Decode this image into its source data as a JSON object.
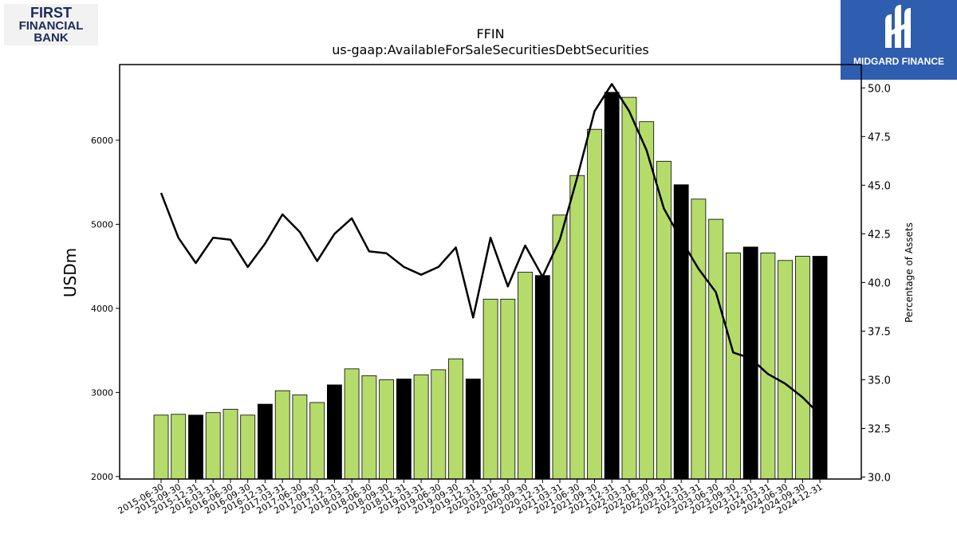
{
  "logos": {
    "left": {
      "line1": "FIRST",
      "line2": "FINANCIAL",
      "line3": "BANK"
    },
    "right": {
      "name": "MIDGARD FINANCE"
    }
  },
  "chart_data": {
    "type": "bar",
    "title": "FFIN",
    "subtitle": "us-gaap:AvailableForSaleSecuritiesDebtSecurities",
    "ylabel": "USDm",
    "y2label": "Percentage of Assets",
    "ylim": [
      1970,
      6900
    ],
    "y2lim": [
      29.9,
      51.2
    ],
    "yticks": [
      2000,
      3000,
      4000,
      5000,
      6000
    ],
    "y2ticks": [
      30.0,
      32.5,
      35.0,
      37.5,
      40.0,
      42.5,
      45.0,
      47.5,
      50.0
    ],
    "categories": [
      "2015-06-30",
      "2015-09-30",
      "2015-12-31",
      "2016-03-31",
      "2016-06-30",
      "2016-09-30",
      "2016-12-31",
      "2017-03-31",
      "2017-06-30",
      "2017-09-30",
      "2017-12-31",
      "2018-03-31",
      "2018-06-30",
      "2018-09-30",
      "2018-12-31",
      "2019-03-31",
      "2019-06-30",
      "2019-09-30",
      "2019-12-31",
      "2020-03-31",
      "2020-06-30",
      "2020-09-30",
      "2020-12-31",
      "2021-03-31",
      "2021-06-30",
      "2021-09-30",
      "2021-12-31",
      "2022-03-31",
      "2022-06-30",
      "2022-09-30",
      "2022-12-31",
      "2023-03-31",
      "2023-06-30",
      "2023-09-30",
      "2023-12-31",
      "2024-03-31",
      "2024-06-30",
      "2024-09-30",
      "2024-12-31"
    ],
    "series": [
      {
        "type": "bar",
        "values": [
          2730,
          2740,
          2730,
          2760,
          2800,
          2730,
          2860,
          3020,
          2970,
          2880,
          3090,
          3280,
          3200,
          3150,
          3160,
          3210,
          3270,
          3400,
          3160,
          4110,
          4110,
          4430,
          4390,
          5110,
          5580,
          6130,
          6570,
          6510,
          6220,
          5750,
          5470,
          5300,
          5060,
          4660,
          4730,
          4660,
          4570,
          4620,
          4620
        ],
        "highlight": [
          2,
          6,
          10,
          14,
          18,
          22,
          26,
          30,
          34,
          38
        ],
        "colors": {
          "normal": "#b5dc6b",
          "highlight": "#000000",
          "edge": "#000000"
        }
      },
      {
        "type": "line",
        "axis": "right",
        "values": [
          44.6,
          42.3,
          41.0,
          42.3,
          42.2,
          40.8,
          42.0,
          43.5,
          42.6,
          41.1,
          42.5,
          43.3,
          41.6,
          41.5,
          40.8,
          40.4,
          40.8,
          41.8,
          38.2,
          42.3,
          39.8,
          41.9,
          40.3,
          42.2,
          45.4,
          48.8,
          50.2,
          48.8,
          46.8,
          43.8,
          42.2,
          40.7,
          39.5,
          36.4,
          36.1,
          35.3,
          34.8,
          34.1,
          33.2
        ],
        "color": "#000000"
      }
    ]
  }
}
